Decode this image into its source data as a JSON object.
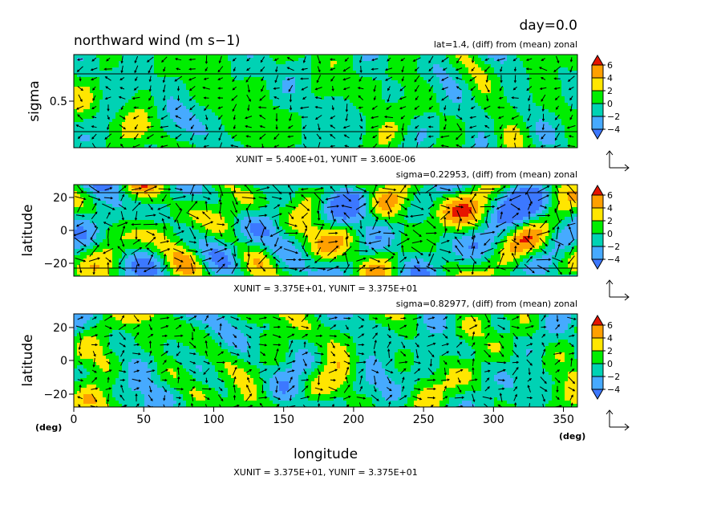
{
  "header": {
    "day_label": "day=0.0",
    "title": "northward wind (m s−1)"
  },
  "colorbar": {
    "levels": [
      "6",
      "4",
      "2",
      "0",
      "−2",
      "−4"
    ],
    "colors": {
      "c_lt_m4": "#3c78ff",
      "c_m4_m2": "#46aaff",
      "c_m2_0": "#00d2b4",
      "c_0_2": "#00ee00",
      "c_2_4": "#ffe600",
      "c_4_6": "#ffa000",
      "c_gt_6": "#e61400",
      "frame": "#000000"
    }
  },
  "chart_data": [
    {
      "type": "heatmap",
      "name": "panel-1",
      "subtitle": "lat=1.4, (diff) from (mean) zonal",
      "xlim": [
        0,
        360
      ],
      "ylim": [
        0,
        1
      ],
      "ylabel": "sigma",
      "yticks": [
        0.5
      ],
      "ytick_labels": [
        "0.5"
      ],
      "unit_note": "XUNIT = 5.400E+01, YUNIT = 3.600E-06",
      "field": "northward wind anomaly with wind vectors",
      "value_range": [
        -6,
        6
      ]
    },
    {
      "type": "heatmap",
      "name": "panel-2",
      "subtitle": "sigma=0.22953, (diff) from (mean) zonal",
      "xlim": [
        0,
        360
      ],
      "ylim": [
        -28,
        28
      ],
      "ylabel": "latitude",
      "yticks": [
        -20,
        0,
        20
      ],
      "ytick_labels": [
        "−20",
        "0",
        "20"
      ],
      "unit_note": "XUNIT = 3.375E+01, YUNIT = 3.375E+01",
      "field": "northward wind anomaly with wind vectors",
      "value_range": [
        -6,
        6
      ]
    },
    {
      "type": "heatmap",
      "name": "panel-3",
      "subtitle": "sigma=0.82977, (diff) from (mean) zonal",
      "xlim": [
        0,
        360
      ],
      "ylim": [
        -28,
        28
      ],
      "ylabel": "latitude",
      "xlabel": "longitude",
      "x_unit_label": "(deg)",
      "y_unit_label": "(deg)",
      "xticks": [
        0,
        50,
        100,
        150,
        200,
        250,
        300,
        350
      ],
      "xtick_labels": [
        "0",
        "50",
        "100",
        "150",
        "200",
        "250",
        "300",
        "350"
      ],
      "yticks": [
        -20,
        0,
        20
      ],
      "ytick_labels": [
        "−20",
        "0",
        "20"
      ],
      "unit_note": "XUNIT = 3.375E+01, YUNIT = 3.375E+01",
      "field": "northward wind anomaly with wind vectors",
      "value_range": [
        -6,
        6
      ]
    }
  ]
}
